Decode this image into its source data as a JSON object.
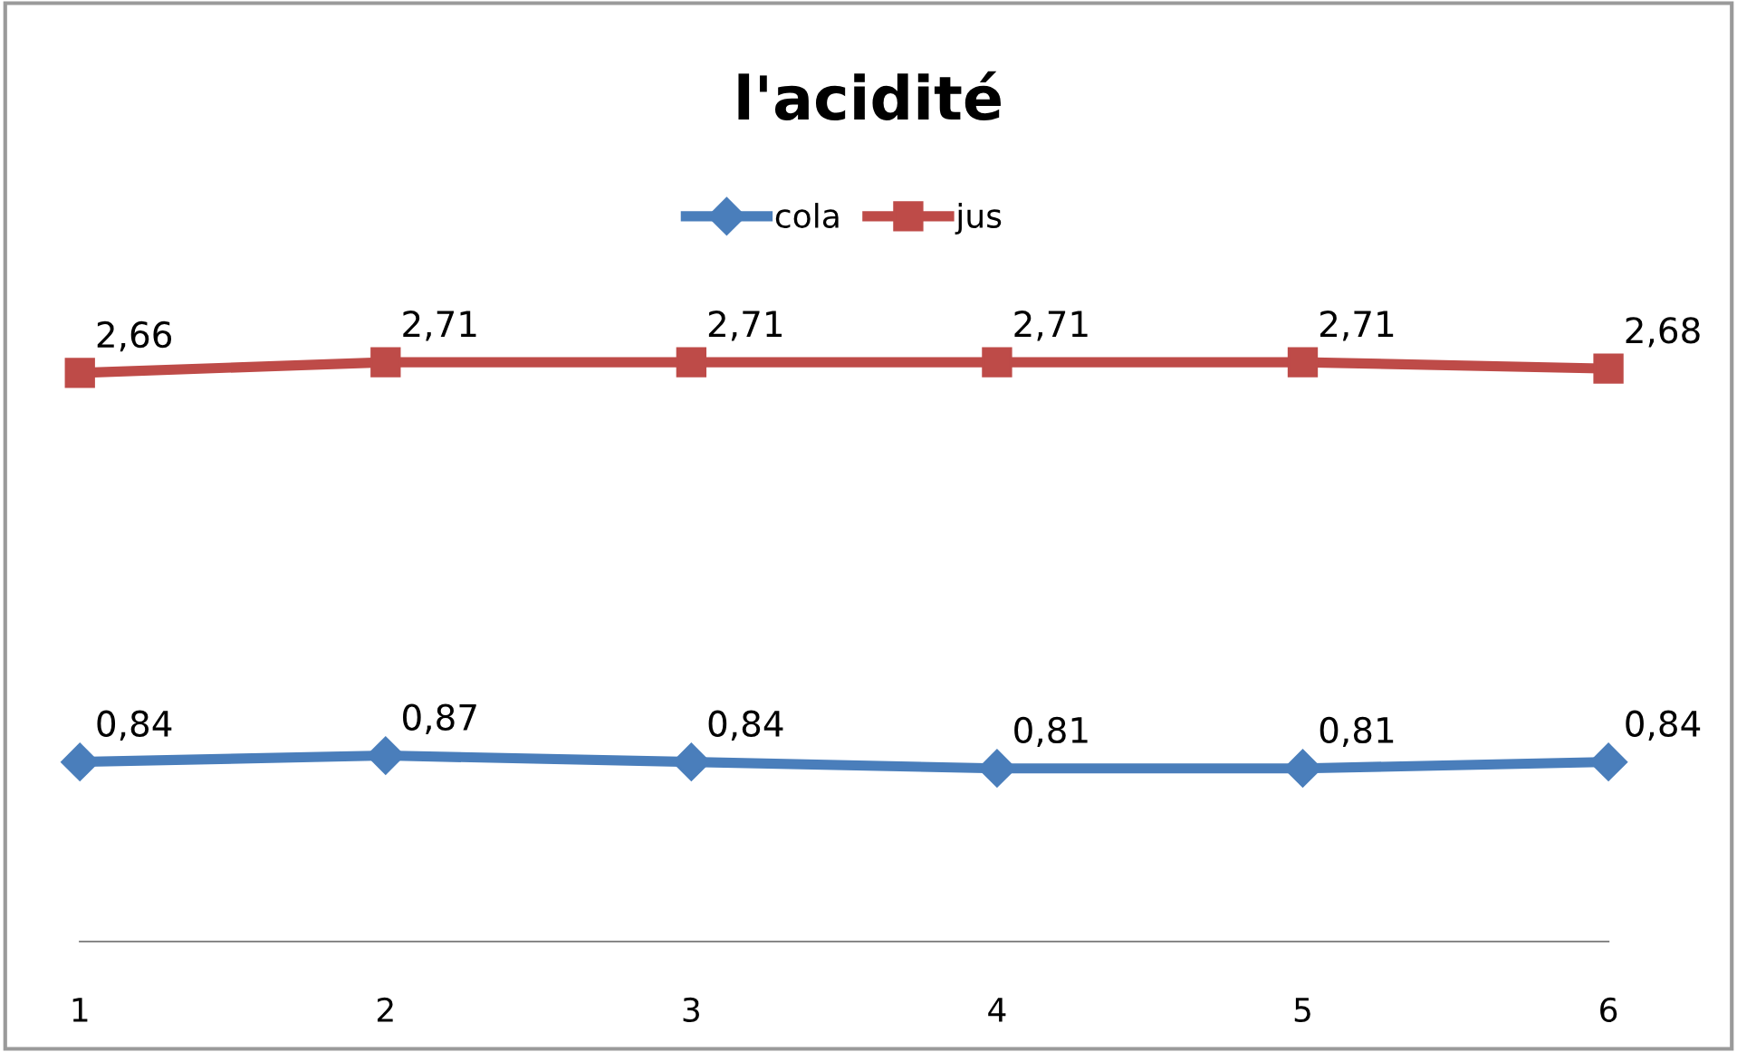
{
  "chart_data": {
    "type": "line",
    "title": "l'acidité",
    "categories": [
      "1",
      "2",
      "3",
      "4",
      "5",
      "6"
    ],
    "tick_labels": "x",
    "legend": "top",
    "grid": false,
    "series": [
      {
        "name": "cola",
        "color": "#4a7ebb",
        "marker": "diamond",
        "values": [
          0.84,
          0.87,
          0.84,
          0.81,
          0.81,
          0.84
        ],
        "value_labels": [
          "0,84",
          "0,87",
          "0,84",
          "0,81",
          "0,81",
          "0,84"
        ]
      },
      {
        "name": "jus",
        "color": "#be4b48",
        "marker": "square",
        "values": [
          2.66,
          2.71,
          2.71,
          2.71,
          2.71,
          2.68
        ],
        "value_labels": [
          "2,66",
          "2,71",
          "2,71",
          "2,71",
          "2,71",
          "2,68"
        ]
      }
    ]
  }
}
